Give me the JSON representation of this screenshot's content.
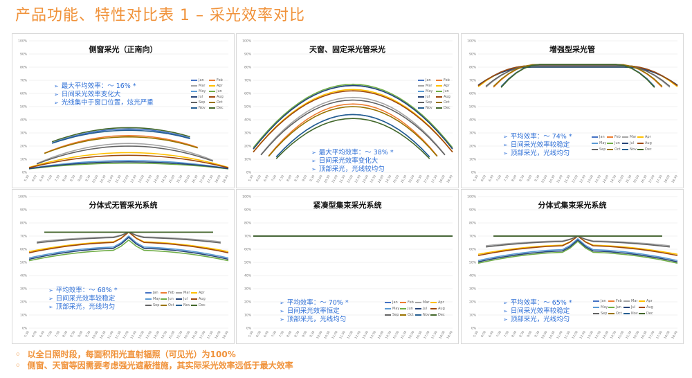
{
  "page": {
    "title": "产品功能、特性对比表 1 – 采光效率对比",
    "footnotes": [
      "以全日照时段，每面积阳光直射辐照（可见光）为100%",
      "侧窗、天窗等因需要考虑强光遮蔽措施，其实际采光效率远低于最大效率"
    ],
    "bullet": "◦"
  },
  "months": [
    "Jan",
    "Feb",
    "Mar",
    "Apr",
    "May",
    "Jun",
    "Jul",
    "Aug",
    "Sep",
    "Oct",
    "Nov",
    "Dec"
  ],
  "colors": {
    "Jan": "#4472c4",
    "Feb": "#ed7d31",
    "Mar": "#a5a5a5",
    "Apr": "#ffc000",
    "May": "#5b9bd5",
    "Jun": "#70ad47",
    "Jul": "#264478",
    "Aug": "#9e480e",
    "Sep": "#636363",
    "Oct": "#997300",
    "Nov": "#255e91",
    "Dec": "#43682b",
    "note": "#2e6fd6",
    "accent": "#f0923a"
  },
  "arrow": "➢",
  "chart_data": [
    {
      "type": "line",
      "title": "侧窗采光（正南向）",
      "ylim": [
        0,
        100
      ],
      "yticks": [
        "0%",
        "10%",
        "20%",
        "30%",
        "40%",
        "50%",
        "60%",
        "70%",
        "80%",
        "90%",
        "100%"
      ],
      "xticks": [
        "5:30",
        "6:00",
        "6:30",
        "7:00",
        "7:30",
        "8:00",
        "8:30",
        "9:00",
        "9:30",
        "10:00",
        "10:30",
        "11:00",
        "11:30",
        "12:00",
        "12:30",
        "13:00",
        "13:30",
        "14:00",
        "14:30",
        "15:00",
        "15:30",
        "16:00",
        "16:30",
        "17:00",
        "17:30",
        "18:00",
        "18:30"
      ],
      "shape": "arch",
      "series_peaks": {
        "Jan": 33,
        "Feb": 28,
        "Mar": 22,
        "Apr": 15,
        "May": 9,
        "Jun": 7,
        "Jul": 8,
        "Aug": 13,
        "Sep": 20,
        "Oct": 27,
        "Nov": 32,
        "Dec": 34
      },
      "series_base": {
        "Jan": 20,
        "Feb": 12,
        "Mar": 4,
        "Apr": 2,
        "May": 2,
        "Jun": 2,
        "Jul": 2,
        "Aug": 2,
        "Sep": 4,
        "Oct": 12,
        "Nov": 20,
        "Dec": 21
      },
      "series_span": {
        "Jan": [
          3,
          21
        ],
        "Feb": [
          2,
          22
        ],
        "Mar": [
          1,
          24
        ],
        "Apr": [
          0,
          26
        ],
        "May": [
          0,
          26
        ],
        "Jun": [
          0,
          26
        ],
        "Jul": [
          0,
          26
        ],
        "Aug": [
          0,
          26
        ],
        "Sep": [
          1,
          24
        ],
        "Oct": [
          2,
          22
        ],
        "Nov": [
          3,
          21
        ],
        "Dec": [
          3,
          21
        ]
      },
      "notes": [
        "最大平均效率：～ 16% *",
        "日间采光效率变化大",
        "光线集中于窗口位置，炫光严重"
      ]
    },
    {
      "type": "line",
      "title": "天窗、固定采光管采光",
      "ylim": [
        0,
        100
      ],
      "yticks": [
        "0%",
        "10%",
        "20%",
        "30%",
        "40%",
        "50%",
        "60%",
        "70%",
        "80%",
        "90%",
        "100%"
      ],
      "xticks": [
        "5:30",
        "6:00",
        "6:30",
        "7:00",
        "7:30",
        "8:00",
        "8:30",
        "9:00",
        "9:30",
        "10:00",
        "10:30",
        "11:00",
        "11:30",
        "12:00",
        "12:30",
        "13:00",
        "13:30",
        "14:00",
        "14:30",
        "15:00",
        "15:30",
        "16:00",
        "16:30",
        "17:00",
        "17:30",
        "18:00",
        "18:30"
      ],
      "shape": "arch",
      "series_peaks": {
        "Jan": 44,
        "Feb": 52,
        "Mar": 57,
        "Apr": 63,
        "May": 66,
        "Jun": 67,
        "Jul": 66,
        "Aug": 62,
        "Sep": 55,
        "Oct": 50,
        "Nov": 44,
        "Dec": 41
      },
      "series_base": {
        "Jan": 5,
        "Feb": 5,
        "Mar": 6,
        "Apr": 8,
        "May": 10,
        "Jun": 11,
        "Jul": 10,
        "Aug": 8,
        "Sep": 6,
        "Oct": 5,
        "Nov": 5,
        "Dec": 4
      },
      "series_span": {
        "Jan": [
          3,
          23
        ],
        "Feb": [
          2,
          24
        ],
        "Mar": [
          1,
          25
        ],
        "Apr": [
          0,
          26
        ],
        "May": [
          0,
          26
        ],
        "Jun": [
          0,
          26
        ],
        "Jul": [
          0,
          26
        ],
        "Aug": [
          0,
          26
        ],
        "Sep": [
          1,
          25
        ],
        "Oct": [
          2,
          24
        ],
        "Nov": [
          3,
          23
        ],
        "Dec": [
          3,
          23
        ]
      },
      "notes": [
        "最大平均效率：～ 38% *",
        "日间采光效率变化大",
        "顶部采光，光线较均匀"
      ]
    },
    {
      "type": "line",
      "title": "增强型采光管",
      "ylim": [
        0,
        100
      ],
      "yticks": [
        "0%",
        "10%",
        "20%",
        "30%",
        "40%",
        "50%",
        "60%",
        "70%",
        "80%",
        "90%",
        "100%"
      ],
      "xticks": [
        "5:30",
        "6:00",
        "6:30",
        "7:00",
        "7:30",
        "8:00",
        "8:30",
        "9:00",
        "9:30",
        "10:00",
        "10:30",
        "11:00",
        "11:30",
        "12:00",
        "12:30",
        "13:00",
        "13:30",
        "14:00",
        "14:30",
        "15:00",
        "15:30",
        "16:00",
        "16:30",
        "17:00",
        "17:30",
        "18:00",
        "18:30"
      ],
      "shape": "plateau",
      "series_peaks": {
        "Jan": 82,
        "Feb": 82,
        "Mar": 81,
        "Apr": 81,
        "May": 81,
        "Jun": 80,
        "Jul": 80,
        "Aug": 81,
        "Sep": 81,
        "Oct": 82,
        "Nov": 82,
        "Dec": 82
      },
      "series_base": {
        "Jan": 58,
        "Feb": 58,
        "Mar": 59,
        "Apr": 60,
        "May": 61,
        "Jun": 62,
        "Jul": 62,
        "Aug": 61,
        "Sep": 60,
        "Oct": 59,
        "Nov": 58,
        "Dec": 57
      },
      "series_span": {
        "Jan": [
          3,
          23
        ],
        "Feb": [
          2,
          24
        ],
        "Mar": [
          1,
          25
        ],
        "Apr": [
          0,
          26
        ],
        "May": [
          0,
          26
        ],
        "Jun": [
          0,
          26
        ],
        "Jul": [
          0,
          26
        ],
        "Aug": [
          0,
          26
        ],
        "Sep": [
          1,
          25
        ],
        "Oct": [
          2,
          24
        ],
        "Nov": [
          3,
          23
        ],
        "Dec": [
          3,
          23
        ]
      },
      "notes": [
        "平均效率：～ 74% *",
        "日间采光效率较稳定",
        "顶部采光，光线均匀"
      ]
    },
    {
      "type": "line",
      "title": "分体式无管采光系统",
      "ylim": [
        0,
        100
      ],
      "yticks": [
        "0%",
        "10%",
        "20%",
        "30%",
        "40%",
        "50%",
        "60%",
        "70%",
        "80%",
        "90%",
        "100%"
      ],
      "xticks": [
        "5:30",
        "6:00",
        "6:30",
        "7:00",
        "7:30",
        "8:00",
        "8:30",
        "9:00",
        "9:30",
        "10:00",
        "10:30",
        "11:00",
        "11:30",
        "12:00",
        "12:30",
        "13:00",
        "13:30",
        "14:00",
        "14:30",
        "15:00",
        "15:30",
        "16:00",
        "16:30",
        "17:00",
        "17:30",
        "18:00",
        "18:30"
      ],
      "shape": "spike",
      "series_peaks": {
        "Jan": 73,
        "Feb": 73,
        "Mar": 73,
        "Apr": 73,
        "May": 70,
        "Jun": 67,
        "Jul": 69,
        "Aug": 73,
        "Sep": 73,
        "Oct": 73,
        "Nov": 73,
        "Dec": 73
      },
      "series_base": {
        "Jan": 73,
        "Feb": 73,
        "Mar": 65,
        "Apr": 57,
        "May": 52,
        "Jun": 50,
        "Jul": 51,
        "Aug": 56,
        "Sep": 64,
        "Oct": 73,
        "Nov": 73,
        "Dec": 73
      },
      "series_span": {
        "Jan": [
          2,
          24
        ],
        "Feb": [
          2,
          24
        ],
        "Mar": [
          1,
          25
        ],
        "Apr": [
          0,
          26
        ],
        "May": [
          0,
          26
        ],
        "Jun": [
          0,
          26
        ],
        "Jul": [
          0,
          26
        ],
        "Aug": [
          0,
          26
        ],
        "Sep": [
          1,
          25
        ],
        "Oct": [
          2,
          24
        ],
        "Nov": [
          2,
          24
        ],
        "Dec": [
          2,
          24
        ]
      },
      "notes": [
        "平均效率：～ 68% *",
        "日间采光效率较稳定",
        "顶部采光，光线均匀"
      ]
    },
    {
      "type": "line",
      "title": "紧凑型集束采光系统",
      "ylim": [
        0,
        100
      ],
      "yticks": [
        "0%",
        "10%",
        "20%",
        "30%",
        "40%",
        "50%",
        "60%",
        "70%",
        "80%",
        "90%",
        "100%"
      ],
      "xticks": [
        "5:30",
        "6:00",
        "6:30",
        "7:00",
        "7:30",
        "8:00",
        "8:30",
        "9:00",
        "9:30",
        "10:00",
        "10:30",
        "11:00",
        "11:30",
        "12:00",
        "12:30",
        "13:00",
        "13:30",
        "14:00",
        "14:30",
        "15:00",
        "15:30",
        "16:00",
        "16:30",
        "17:00",
        "17:30",
        "18:00",
        "18:30"
      ],
      "shape": "flat",
      "series_peaks": {
        "Jan": 70,
        "Feb": 70,
        "Mar": 70,
        "Apr": 70,
        "May": 70,
        "Jun": 70,
        "Jul": 70,
        "Aug": 70,
        "Sep": 70,
        "Oct": 70,
        "Nov": 70,
        "Dec": 70
      },
      "series_base": {
        "Jan": 70,
        "Feb": 70,
        "Mar": 70,
        "Apr": 70,
        "May": 70,
        "Jun": 70,
        "Jul": 70,
        "Aug": 70,
        "Sep": 70,
        "Oct": 70,
        "Nov": 70,
        "Dec": 70
      },
      "series_span": {
        "Jan": [
          0,
          26
        ],
        "Feb": [
          0,
          26
        ],
        "Mar": [
          0,
          26
        ],
        "Apr": [
          0,
          26
        ],
        "May": [
          0,
          26
        ],
        "Jun": [
          0,
          26
        ],
        "Jul": [
          0,
          26
        ],
        "Aug": [
          0,
          26
        ],
        "Sep": [
          0,
          26
        ],
        "Oct": [
          0,
          26
        ],
        "Nov": [
          0,
          26
        ],
        "Dec": [
          0,
          26
        ]
      },
      "notes": [
        "平均效率：～ 70% *",
        "日间采光效率恒定",
        "顶部采光，光线均匀"
      ]
    },
    {
      "type": "line",
      "title": "分体式集束采光系统",
      "ylim": [
        0,
        100
      ],
      "yticks": [
        "0%",
        "10%",
        "20%",
        "30%",
        "40%",
        "50%",
        "60%",
        "70%",
        "80%",
        "90%",
        "100%"
      ],
      "xticks": [
        "5:30",
        "6:00",
        "6:30",
        "7:00",
        "7:30",
        "8:00",
        "8:30",
        "9:00",
        "9:30",
        "10:00",
        "10:30",
        "11:00",
        "11:30",
        "12:00",
        "12:30",
        "13:00",
        "13:30",
        "14:00",
        "14:30",
        "15:00",
        "15:30",
        "16:00",
        "16:30",
        "17:00",
        "17:30",
        "18:00",
        "18:30"
      ],
      "shape": "spike",
      "series_peaks": {
        "Jan": 70,
        "Feb": 70,
        "Mar": 70,
        "Apr": 70,
        "May": 68,
        "Jun": 66,
        "Jul": 67,
        "Aug": 70,
        "Sep": 70,
        "Oct": 70,
        "Nov": 70,
        "Dec": 70
      },
      "series_base": {
        "Jan": 70,
        "Feb": 70,
        "Mar": 62,
        "Apr": 55,
        "May": 50,
        "Jun": 48,
        "Jul": 49,
        "Aug": 54,
        "Sep": 61,
        "Oct": 70,
        "Nov": 70,
        "Dec": 70
      },
      "series_span": {
        "Jan": [
          2,
          24
        ],
        "Feb": [
          2,
          24
        ],
        "Mar": [
          1,
          25
        ],
        "Apr": [
          0,
          26
        ],
        "May": [
          0,
          26
        ],
        "Jun": [
          0,
          26
        ],
        "Jul": [
          0,
          26
        ],
        "Aug": [
          0,
          26
        ],
        "Sep": [
          1,
          25
        ],
        "Oct": [
          2,
          24
        ],
        "Nov": [
          2,
          24
        ],
        "Dec": [
          2,
          24
        ]
      },
      "notes": [
        "平均效率：～ 65% *",
        "日间采光效率较稳定",
        "顶部采光，光线均匀"
      ]
    }
  ]
}
